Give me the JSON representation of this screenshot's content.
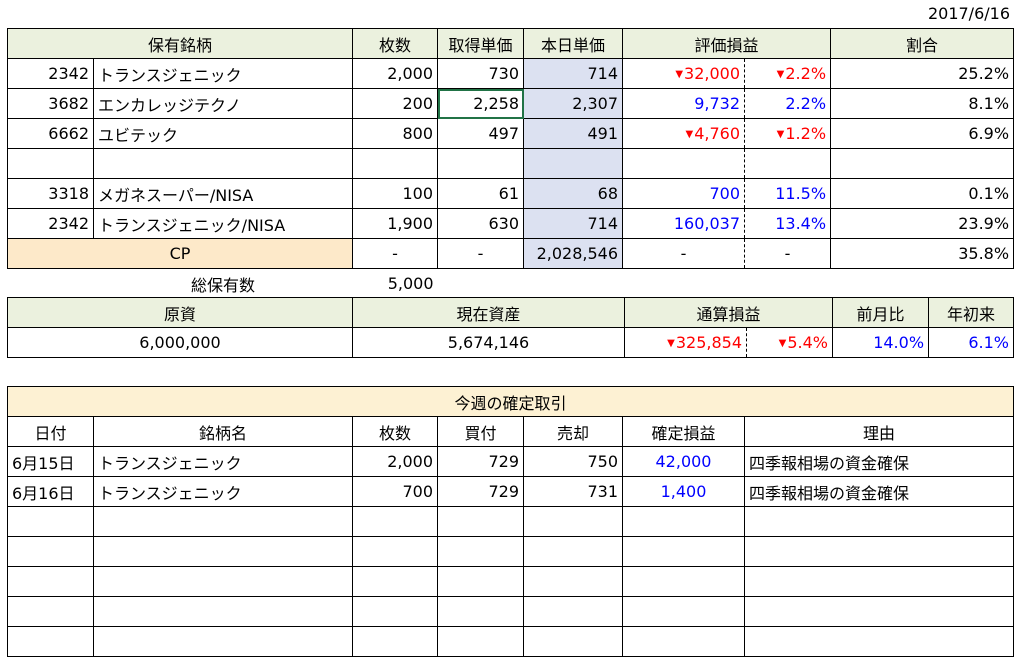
{
  "date": "2017/6/16",
  "holdings": {
    "headers": [
      "保有銘柄",
      "枚数",
      "取得単価",
      "本日単価",
      "評価損益",
      "割合"
    ],
    "rows": [
      {
        "code": "2342",
        "name": "トランスジェニック",
        "qty": "2,000",
        "cost": "730",
        "price": "714",
        "pl": "32,000",
        "pl_neg": true,
        "pct": "2.2%",
        "pct_neg": true,
        "share": "25.2%"
      },
      {
        "code": "3682",
        "name": "エンカレッジテクノ",
        "qty": "200",
        "cost": "2,258",
        "price": "2,307",
        "pl": "9,732",
        "pl_neg": false,
        "pct": "2.2%",
        "pct_neg": false,
        "share": "8.1%"
      },
      {
        "code": "6662",
        "name": "ユビテック",
        "qty": "800",
        "cost": "497",
        "price": "491",
        "pl": "4,760",
        "pl_neg": true,
        "pct": "1.2%",
        "pct_neg": true,
        "share": "6.9%"
      },
      {
        "code": "",
        "name": "",
        "qty": "",
        "cost": "",
        "price": "",
        "pl": "",
        "pl_neg": false,
        "pct": "",
        "pct_neg": false,
        "share": ""
      },
      {
        "code": "3318",
        "name": "メガネスーパー/NISA",
        "qty": "100",
        "cost": "61",
        "price": "68",
        "pl": "700",
        "pl_neg": false,
        "pct": "11.5%",
        "pct_neg": false,
        "share": "0.1%"
      },
      {
        "code": "2342",
        "name": "トランスジェニック/NISA",
        "qty": "1,900",
        "cost": "630",
        "price": "714",
        "pl": "160,037",
        "pl_neg": false,
        "pct": "13.4%",
        "pct_neg": false,
        "share": "23.9%"
      }
    ],
    "cp": {
      "label": "CP",
      "qty": "-",
      "cost": "-",
      "price": "2,028,546",
      "pl": "-",
      "pct": "-",
      "share": "35.8%"
    },
    "total_label": "総保有数",
    "total_value": "5,000"
  },
  "summary": {
    "headers": [
      "原資",
      "現在資産",
      "通算損益",
      "前月比",
      "年初来"
    ],
    "capital": "6,000,000",
    "assets": "5,674,146",
    "pl": "325,854",
    "pl_pct": "5.4%",
    "mom": "14.0%",
    "ytd": "6.1%"
  },
  "trades": {
    "title": "今週の確定取引",
    "headers": [
      "日付",
      "銘柄名",
      "枚数",
      "買付",
      "売却",
      "確定損益",
      "理由"
    ],
    "rows": [
      {
        "date": "6月15日",
        "name": "トランスジェニック",
        "qty": "2,000",
        "buy": "729",
        "sell": "750",
        "pl": "42,000",
        "reason": "四季報相場の資金確保"
      },
      {
        "date": "6月16日",
        "name": "トランスジェニック",
        "qty": "700",
        "buy": "729",
        "sell": "731",
        "pl": "1,400",
        "reason": "四季報相場の資金確保"
      }
    ],
    "empty_rows": 5
  },
  "colors": {
    "header_green": "#ebf1de",
    "today_blue": "#dce1f1",
    "cp_orange": "#fde9c9",
    "title_orange": "#fdf1d3",
    "neg_red": "#ff0000",
    "pos_blue": "#0000ff"
  }
}
